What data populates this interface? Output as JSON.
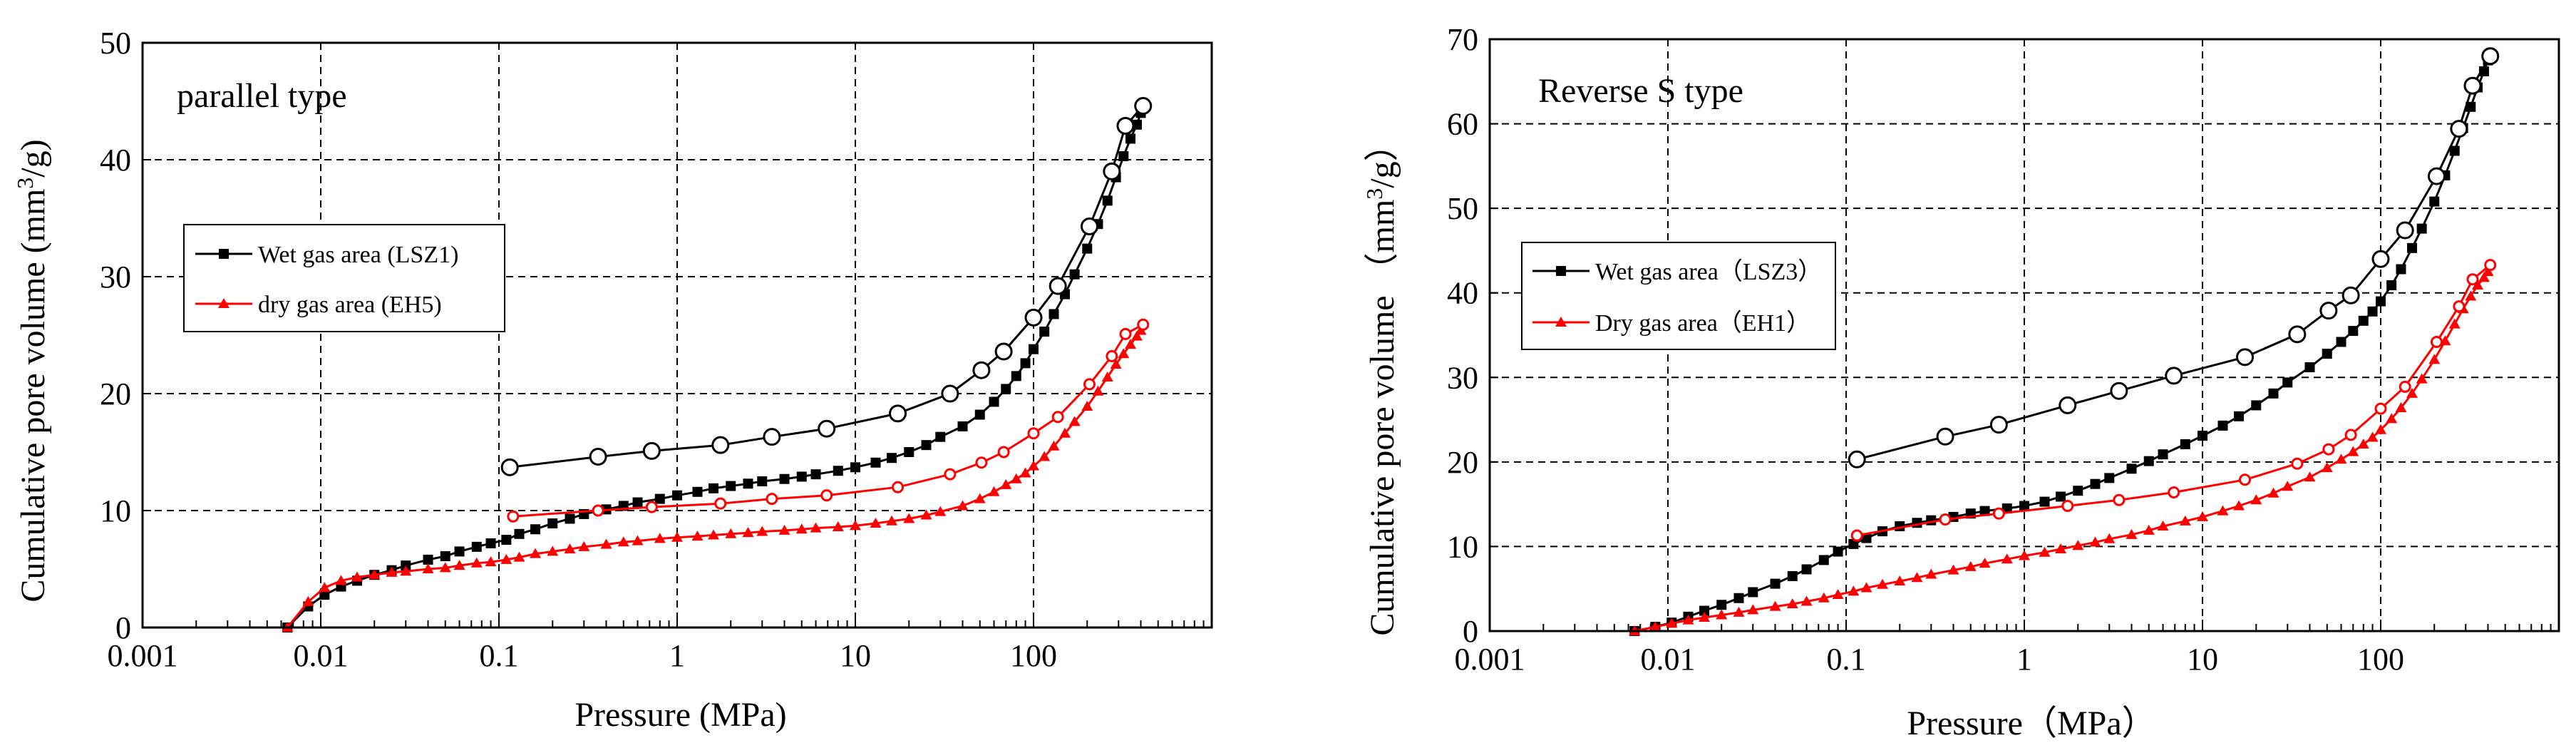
{
  "figure": {
    "colors": {
      "wet": "#000000",
      "dry": "#ff0000",
      "grid": "#000000",
      "background": "#ffffff"
    }
  },
  "chart_data": [
    {
      "type": "line",
      "title": "parallel type",
      "xlabel": "Pressure (MPa)",
      "ylabel": "Cumulative pore volume (mm³/g)",
      "x_scale": "log",
      "xlim": [
        0.001,
        1000
      ],
      "ylim": [
        0,
        50
      ],
      "x_ticks": [
        0.001,
        0.01,
        0.1,
        1,
        10,
        100
      ],
      "x_tick_labels": [
        "0.001",
        "0.01",
        "0.1",
        "1",
        "10",
        "100"
      ],
      "y_ticks": [
        0,
        10,
        20,
        30,
        40,
        50
      ],
      "y_tick_labels": [
        "0",
        "10",
        "20",
        "30",
        "40",
        "50"
      ],
      "legend": [
        {
          "label": "Wet gas area (LSZ1)",
          "color": "#000000",
          "marker": "square"
        },
        {
          "label": "dry gas area (EH5)",
          "color": "#ff0000",
          "marker": "triangle"
        }
      ],
      "series": [
        {
          "name": "Wet gas area (LSZ1) intrusion",
          "color": "#000000",
          "marker": "square",
          "in_legend": true,
          "x": [
            0.0065,
            0.0085,
            0.0105,
            0.013,
            0.016,
            0.02,
            0.025,
            0.03,
            0.04,
            0.05,
            0.06,
            0.075,
            0.09,
            0.11,
            0.13,
            0.16,
            0.2,
            0.25,
            0.3,
            0.4,
            0.5,
            0.6,
            0.8,
            1,
            1.3,
            1.6,
            2,
            2.5,
            3,
            4,
            5,
            6,
            8,
            10,
            13,
            16,
            20,
            25,
            30,
            40,
            50,
            60,
            70,
            80,
            90,
            100,
            115,
            130,
            150,
            170,
            200,
            230,
            260,
            290,
            320,
            350,
            380,
            400
          ],
          "y": [
            0,
            1.8,
            2.8,
            3.5,
            4.0,
            4.5,
            4.9,
            5.3,
            5.8,
            6.1,
            6.5,
            6.9,
            7.2,
            7.5,
            8.0,
            8.4,
            8.9,
            9.3,
            9.7,
            10.1,
            10.4,
            10.7,
            11.0,
            11.3,
            11.6,
            11.9,
            12.1,
            12.3,
            12.5,
            12.7,
            12.9,
            13.1,
            13.4,
            13.7,
            14.1,
            14.5,
            15.0,
            15.6,
            16.3,
            17.2,
            18.2,
            19.3,
            20.4,
            21.5,
            22.6,
            23.8,
            25.3,
            26.8,
            28.5,
            30.2,
            32.4,
            34.5,
            36.5,
            38.5,
            40.3,
            41.8,
            43.0,
            44.0
          ]
        },
        {
          "name": "Wet gas area (LSZ1) extrusion",
          "color": "#000000",
          "marker": "open-circle",
          "in_legend": false,
          "x": [
            0.115,
            0.36,
            0.72,
            1.75,
            3.4,
            6.9,
            17.3,
            34,
            51,
            68,
            100,
            137,
            206,
            275,
            328,
            412
          ],
          "y": [
            13.7,
            14.6,
            15.1,
            15.6,
            16.3,
            17.0,
            18.3,
            20.0,
            22.0,
            23.6,
            26.5,
            29.2,
            34.3,
            39.0,
            42.9,
            44.6
          ]
        },
        {
          "name": "dry gas area (EH5) intrusion",
          "color": "#ff0000",
          "marker": "triangle",
          "in_legend": true,
          "x": [
            0.0065,
            0.0085,
            0.0105,
            0.013,
            0.016,
            0.02,
            0.025,
            0.03,
            0.04,
            0.05,
            0.06,
            0.075,
            0.09,
            0.11,
            0.13,
            0.16,
            0.2,
            0.25,
            0.3,
            0.4,
            0.5,
            0.6,
            0.8,
            1,
            1.3,
            1.6,
            2,
            2.5,
            3,
            4,
            5,
            6,
            8,
            10,
            13,
            16,
            20,
            25,
            30,
            40,
            50,
            60,
            70,
            80,
            90,
            100,
            115,
            130,
            150,
            170,
            200,
            230,
            260,
            290,
            320,
            350,
            380,
            400
          ],
          "y": [
            0,
            2.2,
            3.4,
            4.0,
            4.3,
            4.5,
            4.7,
            4.8,
            5.0,
            5.1,
            5.3,
            5.5,
            5.6,
            5.8,
            6.0,
            6.3,
            6.5,
            6.7,
            6.9,
            7.1,
            7.3,
            7.4,
            7.6,
            7.7,
            7.8,
            7.9,
            8.0,
            8.1,
            8.2,
            8.3,
            8.4,
            8.5,
            8.6,
            8.7,
            8.9,
            9.1,
            9.3,
            9.6,
            9.9,
            10.4,
            11.0,
            11.6,
            12.2,
            12.7,
            13.2,
            13.8,
            14.6,
            15.5,
            16.6,
            17.6,
            18.9,
            20.2,
            21.4,
            22.5,
            23.4,
            24.2,
            24.9,
            25.4
          ]
        },
        {
          "name": "dry gas area (EH5) extrusion",
          "color": "#ff0000",
          "marker": "open-circle",
          "in_legend": false,
          "x": [
            0.12,
            0.36,
            0.72,
            1.75,
            3.4,
            6.9,
            17.3,
            34,
            51,
            68,
            100,
            137,
            206,
            275,
            328,
            412
          ],
          "y": [
            9.5,
            10.0,
            10.3,
            10.6,
            11.0,
            11.3,
            12.0,
            13.1,
            14.1,
            15.0,
            16.6,
            18.0,
            20.8,
            23.2,
            25.1,
            25.9
          ]
        }
      ]
    },
    {
      "type": "line",
      "title": "Reverse S type",
      "xlabel": "Pressure（MPa）",
      "ylabel": "Cumulative pore volume （mm³/g）",
      "x_scale": "log",
      "xlim": [
        0.001,
        1000
      ],
      "ylim": [
        0,
        70
      ],
      "x_ticks": [
        0.001,
        0.01,
        0.1,
        1,
        10,
        100
      ],
      "x_tick_labels": [
        "0.001",
        "0.01",
        "0.1",
        "1",
        "10",
        "100"
      ],
      "y_ticks": [
        0,
        10,
        20,
        30,
        40,
        50,
        60,
        70
      ],
      "y_tick_labels": [
        "0",
        "10",
        "20",
        "30",
        "40",
        "50",
        "60",
        "70"
      ],
      "legend": [
        {
          "label": "Wet gas area（LSZ3）",
          "color": "#000000",
          "marker": "square"
        },
        {
          "label": "Dry gas area（EH1）",
          "color": "#ff0000",
          "marker": "triangle"
        }
      ],
      "series": [
        {
          "name": "Wet gas area（LSZ3） intrusion",
          "color": "#000000",
          "marker": "square",
          "in_legend": true,
          "x": [
            0.0065,
            0.0085,
            0.0105,
            0.013,
            0.016,
            0.02,
            0.025,
            0.03,
            0.04,
            0.05,
            0.06,
            0.075,
            0.09,
            0.11,
            0.13,
            0.16,
            0.2,
            0.25,
            0.3,
            0.4,
            0.5,
            0.6,
            0.8,
            1,
            1.3,
            1.6,
            2,
            2.5,
            3,
            4,
            5,
            6,
            8,
            10,
            13,
            16,
            20,
            25,
            30,
            40,
            50,
            60,
            70,
            80,
            90,
            100,
            115,
            130,
            150,
            170,
            200,
            230,
            260,
            290,
            320,
            350,
            380,
            400
          ],
          "y": [
            0,
            0.5,
            1.0,
            1.7,
            2.4,
            3.1,
            3.9,
            4.6,
            5.6,
            6.5,
            7.3,
            8.4,
            9.4,
            10.3,
            11.0,
            11.8,
            12.4,
            12.8,
            13.1,
            13.5,
            13.9,
            14.2,
            14.5,
            14.8,
            15.3,
            15.9,
            16.6,
            17.4,
            18.1,
            19.2,
            20.1,
            20.9,
            22.1,
            23.1,
            24.3,
            25.4,
            26.7,
            28.1,
            29.4,
            31.2,
            32.8,
            34.2,
            35.5,
            36.7,
            37.8,
            39.0,
            40.9,
            42.8,
            45.3,
            47.6,
            50.8,
            53.9,
            56.8,
            59.5,
            62.0,
            64.3,
            66.2,
            67.5
          ]
        },
        {
          "name": "Wet gas area（LSZ3） extrusion",
          "color": "#000000",
          "marker": "open-circle",
          "in_legend": false,
          "x": [
            0.115,
            0.36,
            0.72,
            1.75,
            3.4,
            6.9,
            17.3,
            34,
            51,
            68,
            100,
            137,
            206,
            275,
            328,
            412
          ],
          "y": [
            20.3,
            23.0,
            24.4,
            26.7,
            28.4,
            30.2,
            32.4,
            35.1,
            37.9,
            39.7,
            44.0,
            47.4,
            53.8,
            59.4,
            64.5,
            68.0
          ]
        },
        {
          "name": "Dry gas area（EH1） intrusion",
          "color": "#ff0000",
          "marker": "triangle",
          "in_legend": true,
          "x": [
            0.0065,
            0.0085,
            0.0105,
            0.013,
            0.016,
            0.02,
            0.025,
            0.03,
            0.04,
            0.05,
            0.06,
            0.075,
            0.09,
            0.11,
            0.13,
            0.16,
            0.2,
            0.25,
            0.3,
            0.4,
            0.5,
            0.6,
            0.8,
            1,
            1.3,
            1.6,
            2,
            2.5,
            3,
            4,
            5,
            6,
            8,
            10,
            13,
            16,
            20,
            25,
            30,
            40,
            50,
            60,
            70,
            80,
            90,
            100,
            115,
            130,
            150,
            170,
            200,
            230,
            260,
            290,
            320,
            350,
            380,
            400
          ],
          "y": [
            0,
            0.5,
            0.9,
            1.3,
            1.6,
            1.9,
            2.2,
            2.5,
            2.9,
            3.2,
            3.5,
            3.9,
            4.3,
            4.7,
            5.1,
            5.5,
            5.9,
            6.3,
            6.7,
            7.2,
            7.6,
            8.0,
            8.5,
            8.9,
            9.3,
            9.7,
            10.1,
            10.5,
            10.9,
            11.4,
            11.9,
            12.4,
            13.0,
            13.5,
            14.2,
            14.8,
            15.5,
            16.3,
            17.1,
            18.2,
            19.3,
            20.3,
            21.2,
            22.1,
            22.9,
            23.8,
            25.1,
            26.4,
            28.1,
            29.8,
            32.1,
            34.3,
            36.3,
            38.1,
            39.6,
            40.9,
            41.8,
            42.5
          ]
        },
        {
          "name": "Dry gas area（EH1） extrusion",
          "color": "#ff0000",
          "marker": "open-circle",
          "in_legend": false,
          "x": [
            0.115,
            0.36,
            0.72,
            1.75,
            3.4,
            6.9,
            17.3,
            34,
            51,
            68,
            100,
            137,
            206,
            275,
            328,
            412
          ],
          "y": [
            11.3,
            13.2,
            13.9,
            14.8,
            15.5,
            16.4,
            17.9,
            19.8,
            21.5,
            23.2,
            26.3,
            28.9,
            34.2,
            38.4,
            41.6,
            43.3
          ]
        }
      ]
    }
  ]
}
